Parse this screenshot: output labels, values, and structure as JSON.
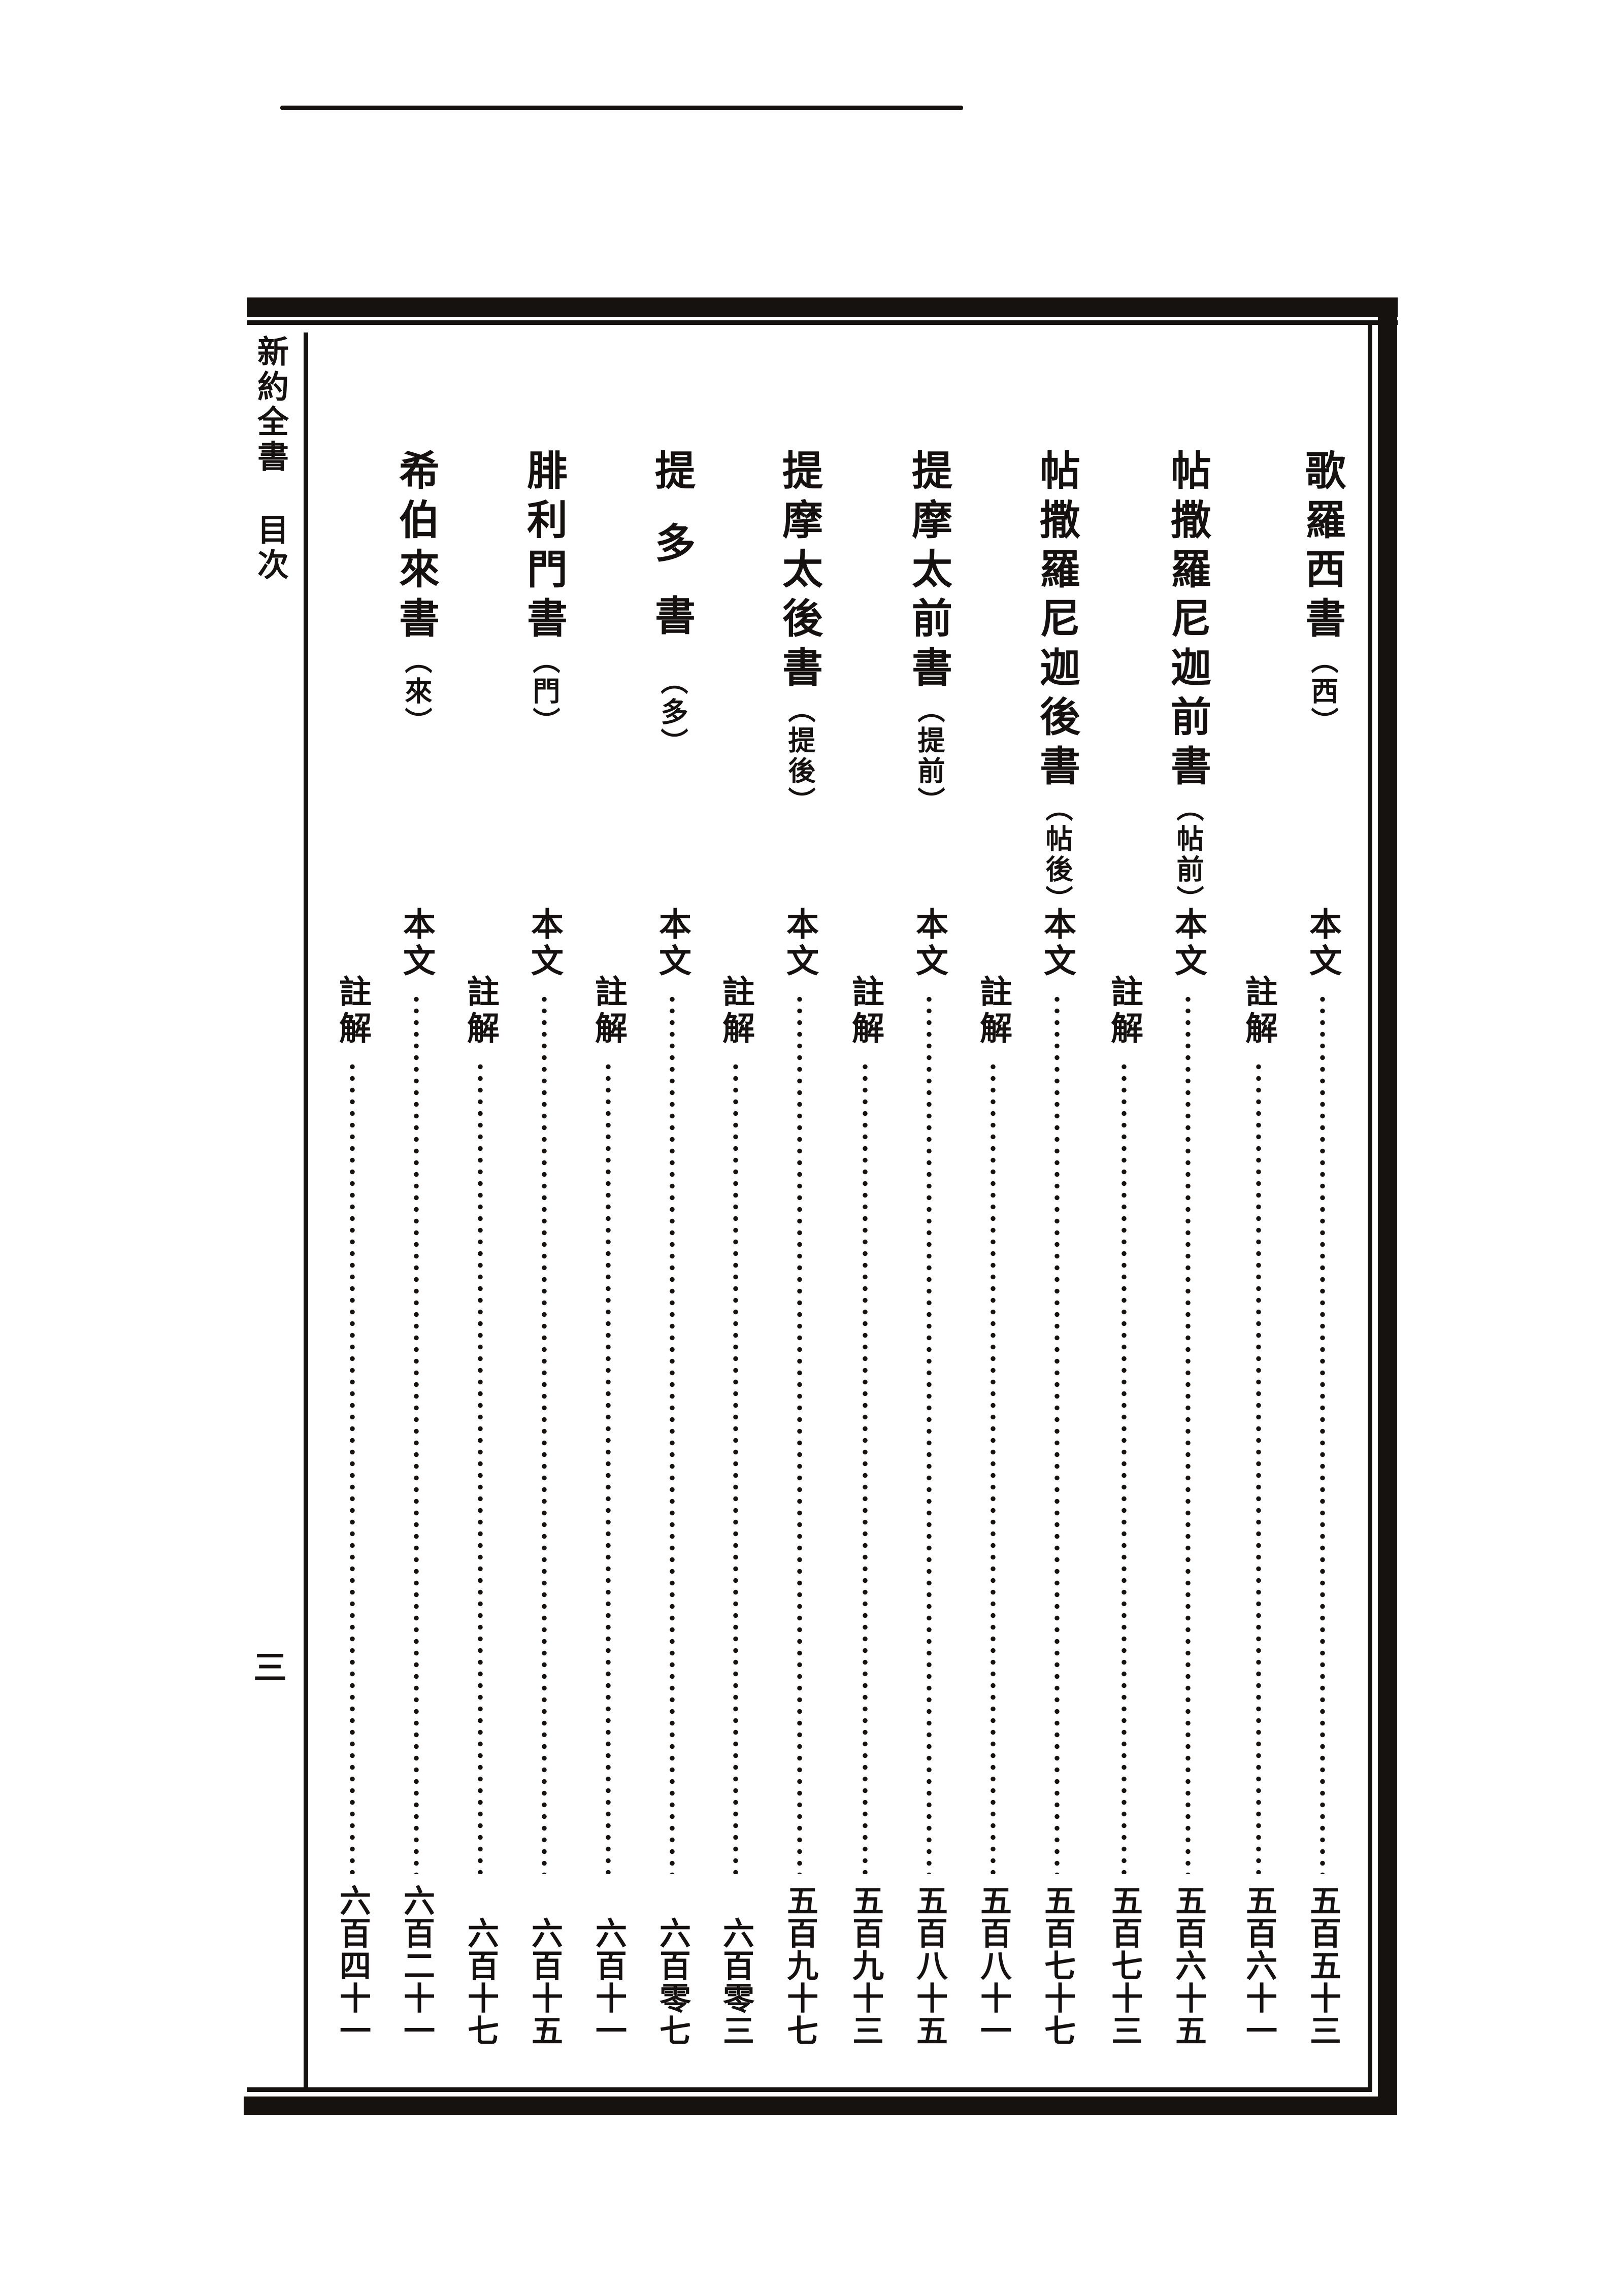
{
  "page": {
    "margin_title": "新約全書",
    "margin_subtitle": "目次",
    "folio_number": "三",
    "ink_color": "#151210",
    "paper_color": "#ffffff"
  },
  "toc": {
    "text_label": "本文",
    "note_label": "註解",
    "books": [
      {
        "title": "歌羅西書",
        "abbr_label": "（西）",
        "text_page": "五百五十三",
        "note_page": "五百六十一"
      },
      {
        "title": "帖撒羅尼迦前書",
        "abbr_label": "（帖前）",
        "text_page": "五百六十五",
        "note_page": "五百七十三"
      },
      {
        "title": "帖撒羅尼迦後書",
        "abbr_label": "（帖後）",
        "text_page": "五百七十七",
        "note_page": "五百八十一"
      },
      {
        "title": "提摩太前書",
        "abbr_label": "（提前）",
        "text_page": "五百八十五",
        "note_page": "五百九十三"
      },
      {
        "title": "提摩太後書",
        "abbr_label": "（提後）",
        "text_page": "五百九十七",
        "note_page": "六百零三"
      },
      {
        "title": "提多書",
        "abbr_label": "（多）",
        "text_page": "六百零七",
        "note_page": "六百十一"
      },
      {
        "title": "腓利門書",
        "abbr_label": "（門）",
        "text_page": "六百十五",
        "note_page": "六百十七"
      },
      {
        "title": "希伯來書",
        "abbr_label": "（來）",
        "text_page": "六百二十一",
        "note_page": "六百四十一"
      }
    ]
  }
}
